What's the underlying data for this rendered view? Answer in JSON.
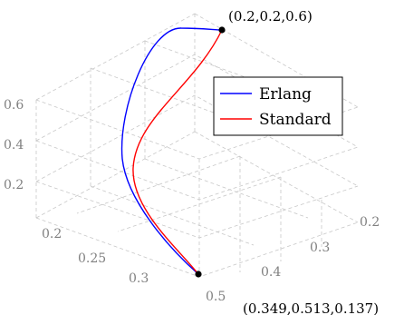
{
  "chart_data": {
    "type": "line",
    "projection": "3d",
    "grid": true,
    "legend_position": "top-right",
    "axes": {
      "x": {
        "ticks": [
          "0.2",
          "0.25",
          "0.3"
        ]
      },
      "y": {
        "ticks": [
          "0.2",
          "0.3",
          "0.4",
          "0.5"
        ]
      },
      "z": {
        "ticks": [
          "0.2",
          "0.4",
          "0.6"
        ]
      }
    },
    "series": [
      {
        "name": "Erlang",
        "color": "#0000ff",
        "points": [
          [
            0.349,
            0.513,
            0.137
          ],
          [
            0.33,
            0.45,
            0.22
          ],
          [
            0.31,
            0.38,
            0.32
          ],
          [
            0.29,
            0.31,
            0.42
          ],
          [
            0.26,
            0.25,
            0.52
          ],
          [
            0.22,
            0.21,
            0.59
          ],
          [
            0.2,
            0.2,
            0.6
          ]
        ]
      },
      {
        "name": "Standard",
        "color": "#ff0000",
        "points": [
          [
            0.349,
            0.513,
            0.137
          ],
          [
            0.325,
            0.44,
            0.2
          ],
          [
            0.31,
            0.38,
            0.27
          ],
          [
            0.3,
            0.33,
            0.35
          ],
          [
            0.28,
            0.27,
            0.45
          ],
          [
            0.24,
            0.22,
            0.56
          ],
          [
            0.2,
            0.2,
            0.6
          ]
        ]
      }
    ],
    "annotations": [
      {
        "text": "(0.2,0.2,0.6)"
      },
      {
        "text": "(0.349,0.513,0.137)"
      }
    ]
  }
}
